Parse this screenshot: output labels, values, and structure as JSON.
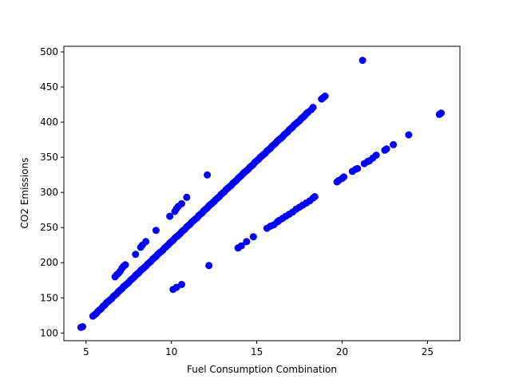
{
  "chart_data": {
    "type": "scatter",
    "title": "",
    "xlabel": "Fuel Consumption Combination",
    "ylabel": "CO2 Emissions",
    "xlim": [
      3.7,
      26.9
    ],
    "ylim": [
      89,
      508
    ],
    "xticks": [
      5,
      10,
      15,
      20,
      25
    ],
    "yticks": [
      100,
      150,
      200,
      250,
      300,
      350,
      400,
      450,
      500
    ],
    "marker_color": "#0000ff",
    "grid": false,
    "legend": "none",
    "series": [
      {
        "name": "data",
        "points": [
          [
            4.7,
            108
          ],
          [
            4.8,
            109
          ],
          [
            5.4,
            124
          ],
          [
            5.5,
            126
          ],
          [
            5.6,
            128
          ],
          [
            5.7,
            131
          ],
          [
            5.8,
            133
          ],
          [
            5.9,
            135
          ],
          [
            6.0,
            138
          ],
          [
            6.1,
            140
          ],
          [
            6.2,
            143
          ],
          [
            6.3,
            145
          ],
          [
            6.4,
            147
          ],
          [
            6.5,
            149
          ],
          [
            6.6,
            152
          ],
          [
            6.7,
            154
          ],
          [
            6.8,
            156
          ],
          [
            6.9,
            159
          ],
          [
            7.0,
            161
          ],
          [
            7.1,
            163
          ],
          [
            7.2,
            166
          ],
          [
            7.3,
            168
          ],
          [
            7.4,
            170
          ],
          [
            7.5,
            172
          ],
          [
            7.6,
            175
          ],
          [
            7.7,
            177
          ],
          [
            7.8,
            179
          ],
          [
            7.9,
            182
          ],
          [
            8.0,
            184
          ],
          [
            8.1,
            186
          ],
          [
            8.2,
            189
          ],
          [
            8.3,
            191
          ],
          [
            8.4,
            193
          ],
          [
            8.5,
            195
          ],
          [
            8.6,
            198
          ],
          [
            8.7,
            200
          ],
          [
            8.8,
            202
          ],
          [
            8.9,
            205
          ],
          [
            9.0,
            207
          ],
          [
            9.1,
            209
          ],
          [
            9.2,
            212
          ],
          [
            9.3,
            214
          ],
          [
            9.4,
            216
          ],
          [
            9.5,
            218
          ],
          [
            9.6,
            221
          ],
          [
            9.7,
            223
          ],
          [
            9.8,
            225
          ],
          [
            9.9,
            228
          ],
          [
            10.0,
            230
          ],
          [
            10.1,
            232
          ],
          [
            10.2,
            235
          ],
          [
            10.3,
            237
          ],
          [
            10.4,
            239
          ],
          [
            10.5,
            241
          ],
          [
            10.6,
            244
          ],
          [
            10.7,
            246
          ],
          [
            10.8,
            248
          ],
          [
            10.9,
            251
          ],
          [
            11.0,
            253
          ],
          [
            11.1,
            255
          ],
          [
            11.2,
            258
          ],
          [
            11.3,
            260
          ],
          [
            11.4,
            262
          ],
          [
            11.5,
            264
          ],
          [
            11.6,
            267
          ],
          [
            11.7,
            269
          ],
          [
            11.8,
            271
          ],
          [
            11.9,
            274
          ],
          [
            12.0,
            276
          ],
          [
            12.1,
            278
          ],
          [
            12.2,
            281
          ],
          [
            12.3,
            283
          ],
          [
            12.4,
            285
          ],
          [
            12.5,
            287
          ],
          [
            12.6,
            290
          ],
          [
            12.7,
            292
          ],
          [
            12.8,
            294
          ],
          [
            12.9,
            297
          ],
          [
            13.0,
            299
          ],
          [
            13.1,
            301
          ],
          [
            13.2,
            304
          ],
          [
            13.3,
            306
          ],
          [
            13.4,
            308
          ],
          [
            13.5,
            310
          ],
          [
            13.6,
            313
          ],
          [
            13.7,
            315
          ],
          [
            13.8,
            317
          ],
          [
            13.9,
            320
          ],
          [
            14.0,
            322
          ],
          [
            14.1,
            324
          ],
          [
            14.2,
            327
          ],
          [
            14.3,
            329
          ],
          [
            14.4,
            331
          ],
          [
            14.5,
            333
          ],
          [
            14.6,
            336
          ],
          [
            14.7,
            338
          ],
          [
            14.8,
            340
          ],
          [
            14.9,
            343
          ],
          [
            15.0,
            345
          ],
          [
            15.1,
            347
          ],
          [
            15.2,
            350
          ],
          [
            15.3,
            352
          ],
          [
            15.4,
            354
          ],
          [
            15.5,
            356
          ],
          [
            15.6,
            359
          ],
          [
            15.7,
            361
          ],
          [
            15.8,
            363
          ],
          [
            15.9,
            366
          ],
          [
            16.0,
            368
          ],
          [
            16.1,
            370
          ],
          [
            16.2,
            373
          ],
          [
            16.3,
            375
          ],
          [
            16.4,
            377
          ],
          [
            16.5,
            379
          ],
          [
            16.6,
            382
          ],
          [
            16.7,
            384
          ],
          [
            16.8,
            386
          ],
          [
            16.9,
            389
          ],
          [
            17.0,
            391
          ],
          [
            17.1,
            393
          ],
          [
            17.2,
            396
          ],
          [
            17.3,
            398
          ],
          [
            17.4,
            400
          ],
          [
            17.5,
            402
          ],
          [
            17.6,
            405
          ],
          [
            17.7,
            407
          ],
          [
            17.8,
            409
          ],
          [
            17.9,
            412
          ],
          [
            18.0,
            414
          ],
          [
            18.2,
            418
          ],
          [
            18.3,
            421
          ],
          [
            18.8,
            433
          ],
          [
            18.9,
            435
          ],
          [
            19.0,
            437
          ],
          [
            6.7,
            180
          ],
          [
            6.8,
            183
          ],
          [
            6.9,
            185
          ],
          [
            7.0,
            188
          ],
          [
            7.1,
            192
          ],
          [
            7.2,
            195
          ],
          [
            7.3,
            197
          ],
          [
            7.9,
            212
          ],
          [
            8.2,
            222
          ],
          [
            8.3,
            225
          ],
          [
            8.5,
            230
          ],
          [
            9.1,
            246
          ],
          [
            9.9,
            266
          ],
          [
            10.2,
            273
          ],
          [
            10.3,
            277
          ],
          [
            10.4,
            280
          ],
          [
            10.6,
            284
          ],
          [
            10.9,
            293
          ],
          [
            12.1,
            325
          ],
          [
            10.1,
            162
          ],
          [
            10.3,
            165
          ],
          [
            10.6,
            169
          ],
          [
            12.2,
            196
          ],
          [
            13.9,
            221
          ],
          [
            14.1,
            224
          ],
          [
            14.4,
            230
          ],
          [
            14.8,
            237
          ],
          [
            15.6,
            249
          ],
          [
            15.8,
            252
          ],
          [
            16.0,
            254
          ],
          [
            16.2,
            258
          ],
          [
            16.3,
            260
          ],
          [
            16.5,
            263
          ],
          [
            16.7,
            266
          ],
          [
            16.9,
            269
          ],
          [
            17.1,
            272
          ],
          [
            17.3,
            276
          ],
          [
            17.5,
            279
          ],
          [
            17.7,
            282
          ],
          [
            17.9,
            285
          ],
          [
            18.1,
            288
          ],
          [
            18.3,
            292
          ],
          [
            18.4,
            294
          ],
          [
            19.7,
            315
          ],
          [
            19.8,
            317
          ],
          [
            20.0,
            320
          ],
          [
            20.1,
            322
          ],
          [
            20.6,
            330
          ],
          [
            20.8,
            333
          ],
          [
            20.9,
            334
          ],
          [
            21.3,
            341
          ],
          [
            21.5,
            344
          ],
          [
            21.6,
            345
          ],
          [
            21.8,
            349
          ],
          [
            22.0,
            353
          ],
          [
            22.5,
            360
          ],
          [
            22.6,
            362
          ],
          [
            23.0,
            368
          ],
          [
            23.9,
            382
          ],
          [
            25.7,
            411
          ],
          [
            25.8,
            413
          ],
          [
            21.2,
            488
          ]
        ]
      }
    ]
  }
}
